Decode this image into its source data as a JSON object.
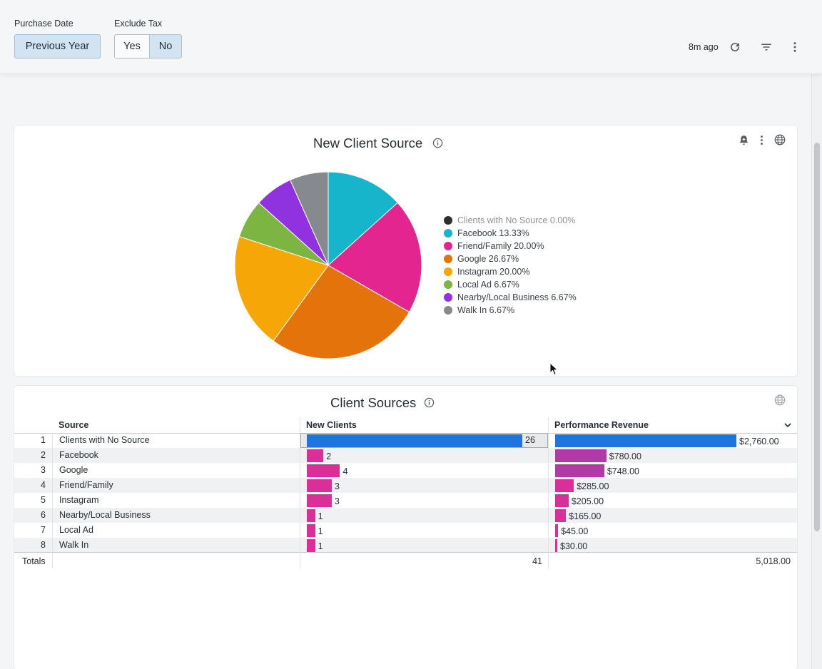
{
  "filters": {
    "purchase_date_label": "Purchase Date",
    "purchase_date_value": "Previous Year",
    "exclude_tax_label": "Exclude Tax",
    "exclude_tax_yes": "Yes",
    "exclude_tax_no": "No",
    "exclude_tax_selected": "No"
  },
  "toolbar": {
    "updated": "8m ago",
    "icons": [
      "refresh-icon",
      "filter-icon",
      "more-vertical-icon"
    ]
  },
  "pie_card": {
    "title": "New Client Source",
    "icons": [
      "alert-bell-icon",
      "more-vertical-icon",
      "globe-icon"
    ],
    "legend": [
      {
        "label": "Clients with No Source 0.00%",
        "color": "#2b2f33"
      },
      {
        "label": "Facebook 13.33%",
        "color": "#17b5cc"
      },
      {
        "label": "Friend/Family 20.00%",
        "color": "#e3268f"
      },
      {
        "label": "Google 26.67%",
        "color": "#e5730b"
      },
      {
        "label": "Instagram 20.00%",
        "color": "#f6a707"
      },
      {
        "label": "Local Ad 6.67%",
        "color": "#7cb542"
      },
      {
        "label": "Nearby/Local Business 6.67%",
        "color": "#9032e0"
      },
      {
        "label": "Walk In 6.67%",
        "color": "#86898e"
      }
    ]
  },
  "chart_data": {
    "type": "pie",
    "title": "New Client Source",
    "labels": [
      "Clients with No Source",
      "Facebook",
      "Friend/Family",
      "Google",
      "Instagram",
      "Local Ad",
      "Nearby/Local Business",
      "Walk In"
    ],
    "values": [
      0.0,
      13.33,
      20.0,
      26.67,
      20.0,
      6.67,
      6.67,
      6.67
    ],
    "colors": [
      "#2b2f33",
      "#17b5cc",
      "#e3268f",
      "#e5730b",
      "#f6a707",
      "#7cb542",
      "#9032e0",
      "#86898e"
    ],
    "legend_position": "right"
  },
  "table_card": {
    "title": "Client Sources",
    "columns": {
      "source": "Source",
      "new_clients": "New Clients",
      "revenue": "Performance Revenue"
    },
    "rows": [
      {
        "n": "1",
        "source": "Clients with No Source",
        "clients": 26,
        "clients_label": "26",
        "revenue": 2760,
        "revenue_label": "$2,760.00",
        "highlight": true
      },
      {
        "n": "2",
        "source": "Facebook",
        "clients": 2,
        "clients_label": "2",
        "revenue": 780,
        "revenue_label": "$780.00"
      },
      {
        "n": "3",
        "source": "Google",
        "clients": 4,
        "clients_label": "4",
        "revenue": 748,
        "revenue_label": "$748.00"
      },
      {
        "n": "4",
        "source": "Friend/Family",
        "clients": 3,
        "clients_label": "3",
        "revenue": 285,
        "revenue_label": "$285.00"
      },
      {
        "n": "5",
        "source": "Instagram",
        "clients": 3,
        "clients_label": "3",
        "revenue": 205,
        "revenue_label": "$205.00"
      },
      {
        "n": "6",
        "source": "Nearby/Local Business",
        "clients": 1,
        "clients_label": "1",
        "revenue": 165,
        "revenue_label": "$165.00"
      },
      {
        "n": "7",
        "source": "Local Ad",
        "clients": 1,
        "clients_label": "1",
        "revenue": 45,
        "revenue_label": "$45.00"
      },
      {
        "n": "8",
        "source": "Walk In",
        "clients": 1,
        "clients_label": "1",
        "revenue": 30,
        "revenue_label": "$30.00"
      }
    ],
    "totals_label": "Totals",
    "totals_clients": "41",
    "totals_revenue": "5,018.00",
    "colors": {
      "highlight": "#1f74e0",
      "bar": "#da2e98",
      "bar_dark": "#b23aa6"
    }
  }
}
